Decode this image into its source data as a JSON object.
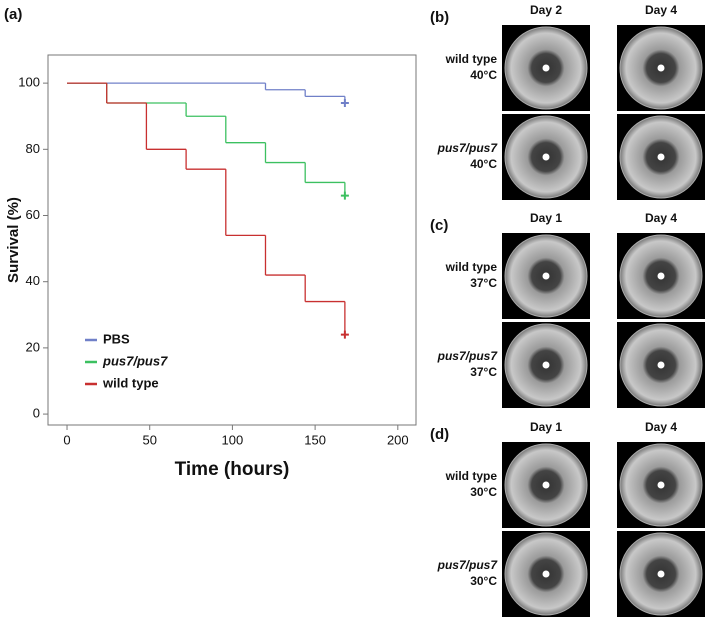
{
  "panel_label": "(a)",
  "chart_data": {
    "type": "step",
    "x_label": "Time (hours)",
    "y_label": "Survival (%)",
    "xlim": [
      -11.5,
      211
    ],
    "ylim": [
      -3.3,
      108.5
    ],
    "xticks": [
      0,
      50,
      100,
      150,
      200
    ],
    "yticks": [
      0,
      20,
      40,
      60,
      80,
      100
    ],
    "legend": "bottom-left",
    "series": [
      {
        "name": "PBS",
        "color": "#7080c8",
        "italic": false,
        "x": [
          0,
          120,
          144,
          168
        ],
        "values": [
          100,
          98,
          96,
          94
        ]
      },
      {
        "name": "pus7/pus7",
        "color": "#3cc060",
        "italic": true,
        "x": [
          0,
          24,
          72,
          96,
          120,
          144,
          168
        ],
        "values": [
          100,
          94,
          90,
          82,
          76,
          70,
          66
        ]
      },
      {
        "name": "wild type",
        "color": "#c83030",
        "italic": false,
        "x": [
          0,
          24,
          48,
          72,
          96,
          120,
          144,
          168
        ],
        "values": [
          100,
          94,
          80,
          74,
          54,
          42,
          34,
          24
        ]
      }
    ]
  },
  "panels": [
    {
      "label": "(b)",
      "days": [
        "Day 2",
        "Day 4"
      ],
      "rows": [
        {
          "strain": "wild type",
          "temp": "40°C",
          "italic": false
        },
        {
          "strain": "pus7/pus7",
          "temp": "40°C",
          "italic": true
        }
      ]
    },
    {
      "label": "(c)",
      "days": [
        "Day 1",
        "Day 4"
      ],
      "rows": [
        {
          "strain": "wild type",
          "temp": "37°C",
          "italic": false
        },
        {
          "strain": "pus7/pus7",
          "temp": "37°C",
          "italic": true
        }
      ]
    },
    {
      "label": "(d)",
      "days": [
        "Day 1",
        "Day 4"
      ],
      "rows": [
        {
          "strain": "wild type",
          "temp": "30°C",
          "italic": false
        },
        {
          "strain": "pus7/pus7",
          "temp": "30°C",
          "italic": true
        }
      ]
    }
  ]
}
